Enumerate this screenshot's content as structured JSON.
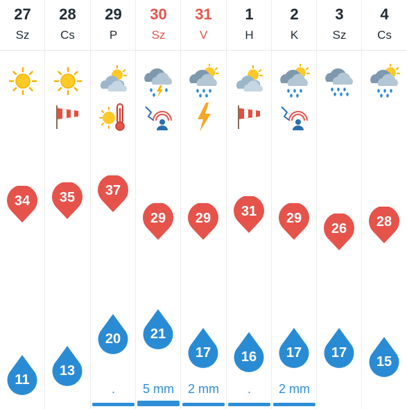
{
  "days": [
    {
      "num": "27",
      "name": "Sz",
      "weekend": false,
      "max": "34",
      "min": "11",
      "rain": "",
      "bar": 0,
      "icons": [
        "sun"
      ]
    },
    {
      "num": "28",
      "name": "Cs",
      "weekend": false,
      "max": "35",
      "min": "13",
      "rain": "",
      "bar": 0,
      "icons": [
        "sun",
        "windsock"
      ]
    },
    {
      "num": "29",
      "name": "P",
      "weekend": false,
      "max": "37",
      "min": "20",
      "rain": ".",
      "bar": 1,
      "icons": [
        "partly-cloudy",
        "hot"
      ]
    },
    {
      "num": "30",
      "name": "Sz",
      "weekend": true,
      "max": "29",
      "min": "21",
      "rain": "5 mm",
      "bar": 1,
      "icons": [
        "thunderstorm",
        "storm-warning"
      ]
    },
    {
      "num": "31",
      "name": "V",
      "weekend": true,
      "max": "29",
      "min": "17",
      "rain": "2 mm",
      "bar": 1,
      "icons": [
        "sun-cloud-rain",
        "lightning"
      ]
    },
    {
      "num": "1",
      "name": "H",
      "weekend": false,
      "max": "31",
      "min": "16",
      "rain": ".",
      "bar": 1,
      "icons": [
        "partly-cloudy",
        "windsock"
      ]
    },
    {
      "num": "2",
      "name": "K",
      "weekend": false,
      "max": "29",
      "min": "17",
      "rain": "2 mm",
      "bar": 1,
      "icons": [
        "sun-cloud-rain",
        "storm-warning"
      ]
    },
    {
      "num": "3",
      "name": "Sz",
      "weekend": false,
      "max": "26",
      "min": "17",
      "rain": "",
      "bar": 0,
      "icons": [
        "rain"
      ]
    },
    {
      "num": "4",
      "name": "Cs",
      "weekend": false,
      "max": "28",
      "min": "15",
      "rain": "",
      "bar": 0,
      "icons": [
        "sun-cloud-rain"
      ]
    }
  ],
  "colors": {
    "max": "#e5534b",
    "min": "#2a8bd5",
    "weekend": "#e5534b",
    "rain": "#2f8fd6"
  }
}
